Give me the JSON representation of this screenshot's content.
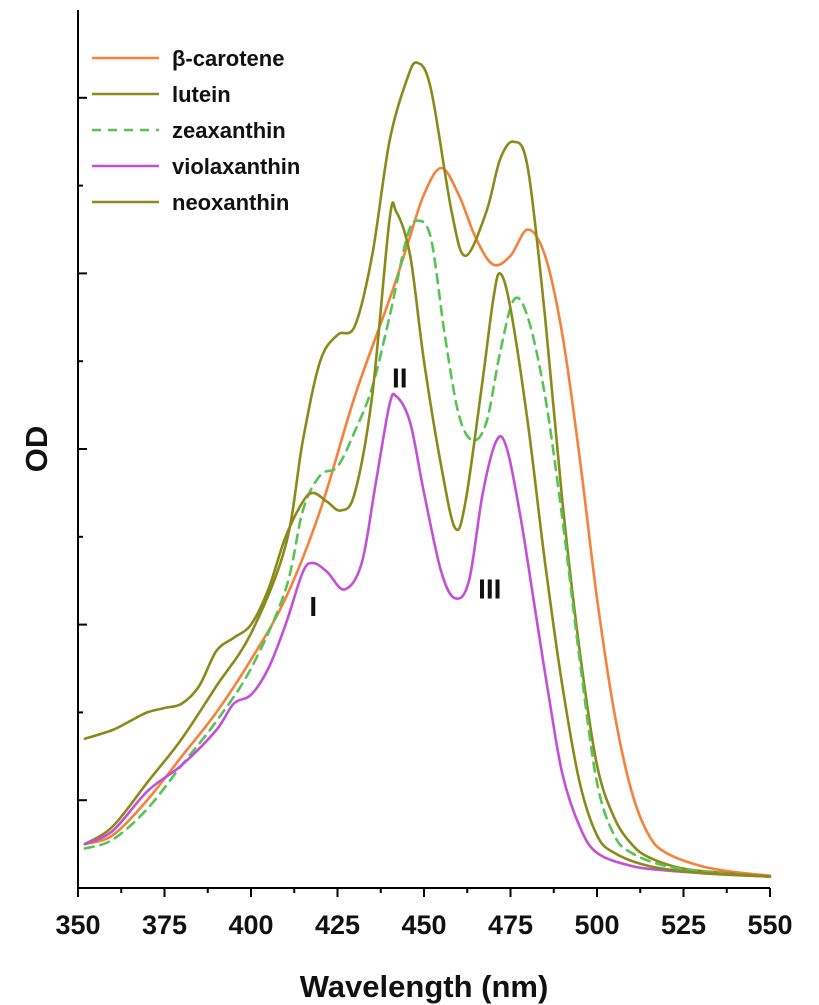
{
  "chart_data": {
    "type": "line",
    "title": "",
    "xlabel": "Wavelength (nm)",
    "ylabel": "OD",
    "xlim": [
      350,
      550
    ],
    "ylim": [
      0,
      1
    ],
    "x_ticks": [
      "350",
      "375",
      "400",
      "425",
      "450",
      "475",
      "500",
      "525",
      "550"
    ],
    "y_ticks_labeled": false,
    "grid": false,
    "legend": {
      "placement": "top-left",
      "entries": [
        "β-carotene",
        "lutein",
        "zeaxanthin",
        "violaxanthin",
        "neoxanthin"
      ]
    },
    "band_labels": [
      {
        "text": "I",
        "x": 418,
        "y": 0.31
      },
      {
        "text": "II",
        "x": 443,
        "y": 0.57
      },
      {
        "text": "III",
        "x": 469,
        "y": 0.33
      }
    ],
    "series": [
      {
        "name": "β-carotene",
        "color": "#f5813a",
        "dash": "solid",
        "points": [
          [
            352,
            0.05
          ],
          [
            360,
            0.06
          ],
          [
            370,
            0.1
          ],
          [
            380,
            0.15
          ],
          [
            390,
            0.2
          ],
          [
            400,
            0.26
          ],
          [
            410,
            0.33
          ],
          [
            420,
            0.43
          ],
          [
            430,
            0.56
          ],
          [
            440,
            0.67
          ],
          [
            445,
            0.73
          ],
          [
            450,
            0.79
          ],
          [
            455,
            0.82
          ],
          [
            460,
            0.79
          ],
          [
            465,
            0.74
          ],
          [
            470,
            0.71
          ],
          [
            475,
            0.72
          ],
          [
            480,
            0.75
          ],
          [
            485,
            0.72
          ],
          [
            490,
            0.63
          ],
          [
            495,
            0.49
          ],
          [
            500,
            0.33
          ],
          [
            505,
            0.2
          ],
          [
            510,
            0.11
          ],
          [
            515,
            0.06
          ],
          [
            520,
            0.04
          ],
          [
            530,
            0.025
          ],
          [
            540,
            0.018
          ],
          [
            550,
            0.014
          ]
        ]
      },
      {
        "name": "lutein",
        "color": "#8a8a1a",
        "dash": "solid",
        "points": [
          [
            352,
            0.05
          ],
          [
            360,
            0.07
          ],
          [
            370,
            0.12
          ],
          [
            380,
            0.17
          ],
          [
            390,
            0.23
          ],
          [
            400,
            0.29
          ],
          [
            410,
            0.39
          ],
          [
            415,
            0.51
          ],
          [
            420,
            0.6
          ],
          [
            425,
            0.63
          ],
          [
            430,
            0.64
          ],
          [
            435,
            0.72
          ],
          [
            440,
            0.85
          ],
          [
            445,
            0.92
          ],
          [
            448,
            0.94
          ],
          [
            452,
            0.91
          ],
          [
            458,
            0.77
          ],
          [
            462,
            0.72
          ],
          [
            468,
            0.77
          ],
          [
            472,
            0.83
          ],
          [
            476,
            0.85
          ],
          [
            480,
            0.82
          ],
          [
            485,
            0.65
          ],
          [
            490,
            0.44
          ],
          [
            495,
            0.27
          ],
          [
            500,
            0.14
          ],
          [
            505,
            0.08
          ],
          [
            510,
            0.05
          ],
          [
            515,
            0.035
          ],
          [
            525,
            0.022
          ],
          [
            540,
            0.016
          ],
          [
            550,
            0.013
          ]
        ]
      },
      {
        "name": "zeaxanthin",
        "color": "#55c455",
        "dash": "dashed",
        "points": [
          [
            352,
            0.045
          ],
          [
            360,
            0.055
          ],
          [
            370,
            0.09
          ],
          [
            380,
            0.14
          ],
          [
            390,
            0.19
          ],
          [
            400,
            0.25
          ],
          [
            410,
            0.34
          ],
          [
            415,
            0.43
          ],
          [
            420,
            0.47
          ],
          [
            425,
            0.48
          ],
          [
            430,
            0.52
          ],
          [
            435,
            0.57
          ],
          [
            440,
            0.65
          ],
          [
            445,
            0.74
          ],
          [
            448,
            0.76
          ],
          [
            452,
            0.74
          ],
          [
            456,
            0.63
          ],
          [
            460,
            0.54
          ],
          [
            464,
            0.51
          ],
          [
            468,
            0.53
          ],
          [
            472,
            0.61
          ],
          [
            476,
            0.67
          ],
          [
            480,
            0.65
          ],
          [
            485,
            0.56
          ],
          [
            490,
            0.42
          ],
          [
            495,
            0.26
          ],
          [
            500,
            0.12
          ],
          [
            505,
            0.06
          ],
          [
            510,
            0.04
          ],
          [
            520,
            0.025
          ],
          [
            535,
            0.017
          ],
          [
            550,
            0.013
          ]
        ]
      },
      {
        "name": "violaxanthin",
        "color": "#c34fd6",
        "dash": "solid",
        "points": [
          [
            352,
            0.05
          ],
          [
            360,
            0.065
          ],
          [
            370,
            0.11
          ],
          [
            380,
            0.14
          ],
          [
            390,
            0.18
          ],
          [
            395,
            0.21
          ],
          [
            400,
            0.22
          ],
          [
            405,
            0.25
          ],
          [
            410,
            0.3
          ],
          [
            415,
            0.36
          ],
          [
            418,
            0.37
          ],
          [
            422,
            0.36
          ],
          [
            427,
            0.34
          ],
          [
            432,
            0.37
          ],
          [
            436,
            0.46
          ],
          [
            440,
            0.55
          ],
          [
            442,
            0.56
          ],
          [
            446,
            0.53
          ],
          [
            450,
            0.45
          ],
          [
            455,
            0.36
          ],
          [
            459,
            0.33
          ],
          [
            463,
            0.35
          ],
          [
            467,
            0.45
          ],
          [
            471,
            0.51
          ],
          [
            474,
            0.5
          ],
          [
            478,
            0.42
          ],
          [
            482,
            0.32
          ],
          [
            486,
            0.22
          ],
          [
            490,
            0.13
          ],
          [
            495,
            0.07
          ],
          [
            500,
            0.04
          ],
          [
            510,
            0.025
          ],
          [
            520,
            0.02
          ],
          [
            535,
            0.016
          ],
          [
            550,
            0.013
          ]
        ]
      },
      {
        "name": "neoxanthin",
        "color": "#8a8a1a",
        "dash": "solid",
        "points": [
          [
            352,
            0.17
          ],
          [
            360,
            0.18
          ],
          [
            365,
            0.19
          ],
          [
            370,
            0.2
          ],
          [
            375,
            0.205
          ],
          [
            380,
            0.21
          ],
          [
            385,
            0.23
          ],
          [
            390,
            0.27
          ],
          [
            395,
            0.285
          ],
          [
            400,
            0.3
          ],
          [
            405,
            0.34
          ],
          [
            410,
            0.4
          ],
          [
            415,
            0.44
          ],
          [
            418,
            0.45
          ],
          [
            422,
            0.44
          ],
          [
            426,
            0.43
          ],
          [
            430,
            0.45
          ],
          [
            435,
            0.56
          ],
          [
            440,
            0.76
          ],
          [
            442,
            0.77
          ],
          [
            446,
            0.72
          ],
          [
            450,
            0.6
          ],
          [
            455,
            0.48
          ],
          [
            459,
            0.41
          ],
          [
            462,
            0.44
          ],
          [
            467,
            0.58
          ],
          [
            470,
            0.67
          ],
          [
            472,
            0.7
          ],
          [
            475,
            0.66
          ],
          [
            480,
            0.53
          ],
          [
            485,
            0.37
          ],
          [
            490,
            0.23
          ],
          [
            495,
            0.12
          ],
          [
            500,
            0.06
          ],
          [
            505,
            0.04
          ],
          [
            515,
            0.025
          ],
          [
            530,
            0.017
          ],
          [
            550,
            0.013
          ]
        ]
      }
    ]
  }
}
